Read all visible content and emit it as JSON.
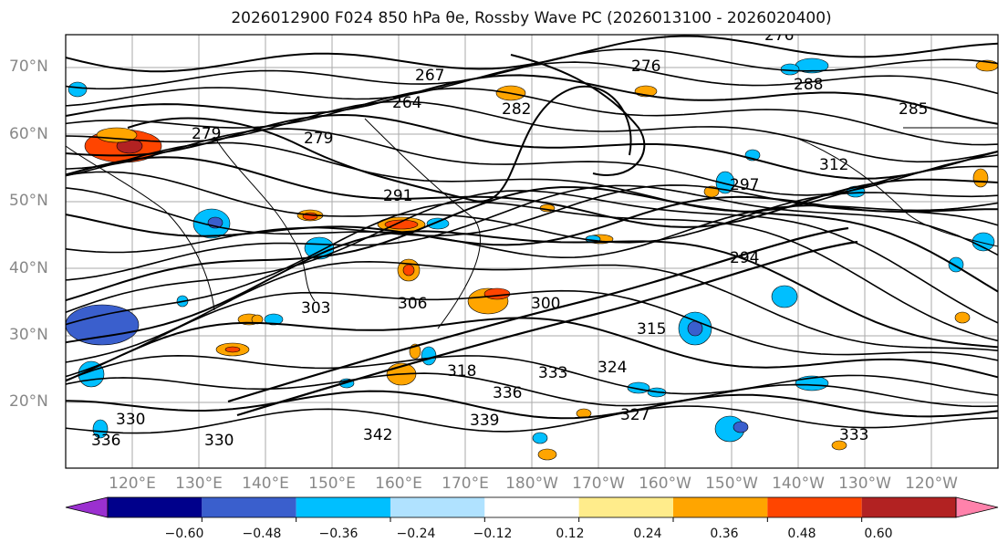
{
  "title": "2026012900 F024 850 hPa θe, Rossby Wave PC (2026013100 - 2026020400)",
  "lat_labels": [
    "70°N",
    "60°N",
    "50°N",
    "40°N",
    "30°N",
    "20°N"
  ],
  "lon_labels": [
    "120°E",
    "130°E",
    "140°E",
    "150°E",
    "160°E",
    "170°E",
    "180°W",
    "170°W",
    "160°W",
    "150°W",
    "140°W",
    "130°W",
    "120°W"
  ],
  "contour_labels": [
    "276",
    "276",
    "267",
    "264",
    "282",
    "279",
    "279",
    "291",
    "303",
    "306",
    "300",
    "294",
    "297",
    "312",
    "315",
    "318",
    "324",
    "333",
    "336",
    "339",
    "342",
    "330",
    "333",
    "336",
    "327",
    "330",
    "285",
    "288"
  ],
  "colorbar": {
    "ticks": [
      "−0.60",
      "−0.48",
      "−0.36",
      "−0.24",
      "−0.12",
      "0.12",
      "0.24",
      "0.36",
      "0.48",
      "0.60"
    ],
    "colors": [
      "#9b30d0",
      "#00008b",
      "#3a5fcd",
      "#00bfff",
      "#b0e2ff",
      "#ffffff",
      "#ffec8b",
      "#ffa500",
      "#ff4500",
      "#b22222",
      "#ff82ab"
    ]
  }
}
